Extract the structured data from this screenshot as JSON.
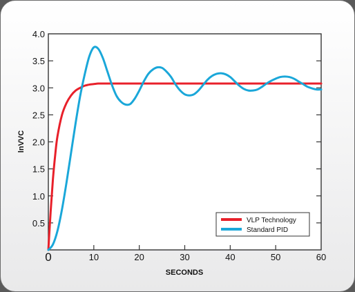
{
  "chart_data": {
    "type": "line",
    "title": "",
    "xlabel": "SECONDS",
    "ylabel": "lnVVC",
    "xlim": [
      0,
      60
    ],
    "ylim": [
      0,
      4.0
    ],
    "x_ticks": [
      "0",
      "10",
      "20",
      "30",
      "40",
      "50",
      "60"
    ],
    "y_ticks": [
      "0.5",
      "1.0",
      "1.5",
      "2.0",
      "2.5",
      "3.0",
      "3.5",
      "4.0"
    ],
    "grid": false,
    "legend_position": "bottom-right",
    "series": [
      {
        "name": "VLP Technology",
        "color": "#e8202a",
        "x": [
          0,
          0.5,
          1,
          1.5,
          2,
          3,
          4,
          5,
          6,
          7,
          8,
          9,
          10,
          11,
          12,
          15,
          20,
          30,
          40,
          50,
          60
        ],
        "y": [
          0,
          0.7,
          1.3,
          1.75,
          2.1,
          2.5,
          2.72,
          2.86,
          2.95,
          3.0,
          3.04,
          3.06,
          3.07,
          3.08,
          3.08,
          3.08,
          3.08,
          3.08,
          3.08,
          3.08,
          3.08
        ]
      },
      {
        "name": "Standard PID",
        "color": "#1aa7d9",
        "x": [
          0,
          1,
          2,
          3,
          4,
          5,
          6,
          7,
          8,
          9,
          10,
          11,
          12,
          13,
          14,
          15,
          16,
          17,
          18,
          19,
          20,
          21,
          22,
          23,
          24,
          25,
          26,
          27,
          28,
          29,
          30,
          31,
          32,
          33,
          34,
          35,
          36,
          37,
          38,
          39,
          40,
          41,
          42,
          43,
          44,
          45,
          46,
          47,
          48,
          49,
          50,
          51,
          52,
          53,
          54,
          55,
          56,
          57,
          58,
          59,
          60
        ],
        "y": [
          0,
          0.1,
          0.35,
          0.75,
          1.25,
          1.8,
          2.35,
          2.85,
          3.25,
          3.58,
          3.75,
          3.72,
          3.55,
          3.3,
          3.05,
          2.85,
          2.74,
          2.69,
          2.7,
          2.8,
          2.95,
          3.12,
          3.26,
          3.34,
          3.38,
          3.37,
          3.3,
          3.2,
          3.06,
          2.95,
          2.88,
          2.86,
          2.88,
          2.95,
          3.05,
          3.15,
          3.22,
          3.26,
          3.27,
          3.25,
          3.2,
          3.12,
          3.04,
          2.98,
          2.95,
          2.95,
          2.97,
          3.02,
          3.08,
          3.13,
          3.17,
          3.2,
          3.21,
          3.2,
          3.17,
          3.12,
          3.07,
          3.02,
          2.99,
          2.97,
          2.97
        ]
      }
    ]
  }
}
